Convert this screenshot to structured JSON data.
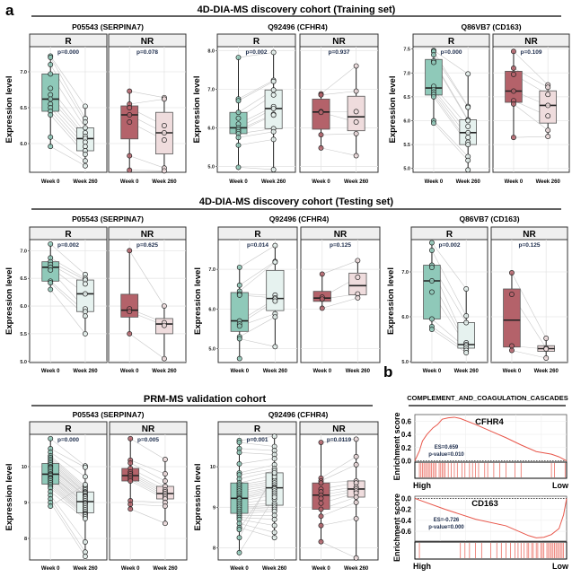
{
  "panel_labels": {
    "a": "a",
    "b": "b"
  },
  "colors": {
    "r_week0": "#8fc9b9",
    "r_week260": "#e6f2ef",
    "nr_week0": "#b4626a",
    "nr_week260": "#efdcdd",
    "gsea_line": "#e8564a",
    "gsea_hit": "#e8564a"
  },
  "sections": [
    {
      "title": "4D-DIA-MS discovery cohort (Training set)"
    },
    {
      "title": "4D-DIA-MS discovery cohort (Testing set)"
    },
    {
      "title": "PRM-MS validation cohort"
    }
  ],
  "ylabel": "Expression level",
  "xticks": [
    "Week 0",
    "Week 260"
  ],
  "chart_data": [
    {
      "type": "box",
      "section": 0,
      "title": "P05543 (SERPINA7)",
      "ylim": [
        5.6,
        7.35
      ],
      "yticks": [
        "6.0",
        "6.5",
        "7.0"
      ],
      "facets": [
        {
          "label": "R",
          "p": "p=0.000",
          "week0": [
            7.22,
            7.2,
            7.1,
            6.97,
            6.77,
            6.68,
            6.62,
            6.55,
            6.5,
            6.45,
            6.4,
            6.09,
            5.96
          ],
          "week260": [
            6.52,
            6.35,
            6.3,
            6.22,
            6.15,
            6.1,
            6.07,
            6.02,
            5.96,
            5.9,
            5.85,
            5.76,
            5.69
          ]
        },
        {
          "label": "NR",
          "p": "p=0.078",
          "week0": [
            6.73,
            6.55,
            6.5,
            6.4,
            6.3,
            5.83,
            5.63
          ],
          "week260": [
            6.64,
            6.62,
            6.25,
            6.15,
            6.05,
            5.66,
            5.62
          ]
        }
      ]
    },
    {
      "type": "box",
      "section": 0,
      "title": "Q92496 (CFHR4)",
      "ylim": [
        4.85,
        8.1
      ],
      "yticks": [
        "5.0",
        "6.0",
        "7.0",
        "8.0"
      ],
      "facets": [
        {
          "label": "R",
          "p": "p=0.002",
          "week0": [
            7.82,
            6.75,
            6.7,
            6.4,
            6.25,
            6.1,
            6.0,
            5.95,
            5.9,
            5.85,
            5.75,
            5.55,
            4.98
          ],
          "week260": [
            7.95,
            7.23,
            7.2,
            6.98,
            6.85,
            6.55,
            6.5,
            6.35,
            6.33,
            5.98,
            5.9,
            5.7,
            4.92
          ]
        },
        {
          "label": "NR",
          "p": "p=0.937",
          "week0": [
            6.88,
            6.85,
            6.42,
            6.4,
            5.82,
            5.48
          ],
          "week260": [
            7.6,
            6.95,
            6.42,
            6.15,
            5.85,
            5.28
          ]
        }
      ]
    },
    {
      "type": "box",
      "section": 0,
      "title": "Q86VB7 (CD163)",
      "ylim": [
        4.92,
        7.55
      ],
      "yticks": [
        "5.0",
        "5.5",
        "6.0",
        "6.5",
        "7.0",
        "7.5"
      ],
      "facets": [
        {
          "label": "R",
          "p": "p=0.000",
          "week0": [
            7.47,
            7.45,
            7.38,
            7.25,
            7.22,
            6.72,
            6.65,
            6.6,
            6.55,
            6.5,
            6.0,
            5.95
          ],
          "week260": [
            6.98,
            6.3,
            6.28,
            6.02,
            6.0,
            5.88,
            5.75,
            5.65,
            5.55,
            5.5,
            5.25,
            5.17,
            4.97
          ]
        },
        {
          "label": "NR",
          "p": "p=0.109",
          "week0": [
            7.45,
            7.1,
            6.97,
            6.62,
            6.42,
            6.35,
            5.65
          ],
          "week260": [
            6.75,
            6.7,
            6.55,
            6.32,
            6.1,
            5.8,
            5.67
          ]
        }
      ]
    },
    {
      "type": "box",
      "section": 1,
      "title": "P05543 (SERPINA7)",
      "ylim": [
        4.98,
        7.2
      ],
      "yticks": [
        "5.0",
        "5.5",
        "6.0",
        "6.5",
        "7.0"
      ],
      "facets": [
        {
          "label": "R",
          "p": "p=0.002",
          "week0": [
            7.12,
            6.87,
            6.8,
            6.75,
            6.7,
            6.65,
            6.45,
            6.42,
            6.3
          ],
          "week260": [
            6.57,
            6.5,
            6.47,
            6.4,
            6.22,
            5.95,
            5.9,
            5.82,
            5.5
          ]
        },
        {
          "label": "NR",
          "p": "p=0.625",
          "week0": [
            7.0,
            5.95,
            5.9,
            5.5
          ],
          "week260": [
            6.0,
            5.7,
            5.65,
            5.05
          ]
        }
      ]
    },
    {
      "type": "box",
      "section": 1,
      "title": "Q92496 (CFHR4)",
      "ylim": [
        4.65,
        7.75
      ],
      "yticks": [
        "5.0",
        "6.0",
        "7.0"
      ],
      "facets": [
        {
          "label": "R",
          "p": "p=0.014",
          "week0": [
            7.05,
            6.6,
            6.45,
            6.38,
            6.35,
            5.7,
            5.62,
            5.57,
            5.3,
            5.25,
            4.75
          ],
          "week260": [
            7.6,
            7.2,
            7.18,
            6.35,
            6.28,
            6.25,
            6.2,
            5.88,
            5.8,
            5.05
          ]
        },
        {
          "label": "NR",
          "p": "p=0.125",
          "week0": [
            6.88,
            6.3,
            6.25,
            6.02
          ],
          "week260": [
            7.22,
            6.8,
            6.38,
            6.28
          ]
        }
      ]
    },
    {
      "type": "box",
      "section": 1,
      "title": "Q86VB7 (CD163)",
      "ylim": [
        4.98,
        7.72
      ],
      "yticks": [
        "5.0",
        "6.0",
        "7.0"
      ],
      "facets": [
        {
          "label": "R",
          "p": "p=0.002",
          "week0": [
            7.65,
            7.48,
            7.15,
            7.1,
            6.8,
            6.55,
            5.95,
            5.78,
            5.72
          ],
          "week260": [
            6.62,
            6.02,
            5.87,
            5.42,
            5.38,
            5.35,
            5.3,
            5.25,
            5.2
          ]
        },
        {
          "label": "NR",
          "p": "p=0.125",
          "week0": [
            6.98,
            6.5,
            5.35,
            5.25
          ],
          "week260": [
            5.52,
            5.3,
            5.28,
            5.08
          ]
        }
      ]
    },
    {
      "type": "box",
      "section": 2,
      "title": "P05543 (SERPINA7)",
      "ylim": [
        7.4,
        10.9
      ],
      "yticks": [
        "8",
        "9",
        "10"
      ],
      "facets": [
        {
          "label": "R",
          "p": "p=0.000",
          "week0": [
            10.78,
            10.5,
            10.4,
            10.3,
            10.25,
            10.2,
            10.15,
            10.1,
            10.05,
            10.0,
            9.98,
            9.95,
            9.9,
            9.85,
            9.8,
            9.78,
            9.75,
            9.7,
            9.68,
            9.65,
            9.6,
            9.55,
            9.5,
            9.45,
            9.4,
            9.3,
            9.2,
            9.1,
            9.0,
            8.9
          ],
          "week260": [
            10.02,
            9.98,
            9.72,
            9.45,
            9.4,
            9.35,
            9.3,
            9.28,
            9.25,
            9.2,
            9.18,
            9.15,
            9.1,
            9.05,
            9.0,
            8.98,
            8.95,
            8.9,
            8.85,
            8.8,
            8.75,
            8.7,
            8.68,
            8.65,
            8.6,
            8.55,
            7.9,
            7.62,
            7.5,
            9.5
          ]
        },
        {
          "label": "NR",
          "p": "p=0.005",
          "week0": [
            10.78,
            10.18,
            10.1,
            9.95,
            9.85,
            9.8,
            9.75,
            9.7,
            9.65,
            9.6,
            9.05,
            8.95,
            8.82
          ],
          "week260": [
            10.2,
            9.8,
            9.6,
            9.45,
            9.35,
            9.3,
            9.25,
            9.2,
            9.15,
            9.1,
            9.0,
            8.9,
            8.42
          ]
        }
      ]
    },
    {
      "type": "box",
      "section": 2,
      "title": "Q92496 (CFHR4)",
      "ylim": [
        7.7,
        10.8
      ],
      "yticks": [
        "8",
        "9",
        "10"
      ],
      "facets": [
        {
          "label": "R",
          "p": "p=0.001",
          "week0": [
            10.65,
            10.6,
            10.45,
            10.35,
            10.07,
            9.85,
            9.8,
            9.7,
            9.6,
            9.55,
            9.5,
            9.45,
            9.4,
            9.35,
            9.3,
            9.25,
            9.22,
            9.2,
            9.15,
            9.1,
            9.05,
            9.0,
            8.95,
            8.9,
            8.85,
            8.8,
            8.75,
            8.7,
            8.6,
            8.5,
            8.45,
            8.25,
            7.88
          ],
          "week260": [
            10.75,
            10.5,
            10.4,
            10.3,
            10.2,
            10.05,
            9.95,
            9.9,
            9.8,
            9.7,
            9.65,
            9.6,
            9.55,
            9.5,
            9.48,
            9.45,
            9.4,
            9.35,
            9.3,
            9.2,
            9.1,
            9.05,
            9.0,
            8.95,
            8.9,
            8.8,
            8.7,
            8.55,
            8.38,
            8.25,
            9.75,
            9.85,
            9.25
          ]
        },
        {
          "label": "NR",
          "p": "p=0.0119",
          "week0": [
            10.6,
            9.72,
            9.65,
            9.6,
            9.45,
            9.38,
            9.3,
            9.22,
            9.1,
            8.95,
            8.78,
            8.55,
            8.15
          ],
          "week260": [
            10.68,
            10.25,
            10.05,
            9.65,
            9.6,
            9.5,
            9.45,
            9.4,
            9.35,
            9.25,
            9.12,
            8.72,
            7.75
          ]
        }
      ]
    }
  ],
  "gsea": {
    "title": "COMPLEMENT_AND_COAGULATION_CASCADES",
    "ylabel": "Enrichment score",
    "high_label": "High",
    "low_label": "Low",
    "plots": [
      {
        "type": "line",
        "name": "CFHR4",
        "es": "ES=0.659",
        "pvalue": "p-value=0.010",
        "ylim": [
          -0.02,
          0.7
        ],
        "yticks": [
          "0.0",
          "0.2",
          "0.4",
          "0.6"
        ],
        "ytick_values": [
          0,
          0.2,
          0.4,
          0.6
        ],
        "curve": [
          [
            0,
            0
          ],
          [
            0.03,
            0.15
          ],
          [
            0.05,
            0.3
          ],
          [
            0.08,
            0.4
          ],
          [
            0.12,
            0.5
          ],
          [
            0.15,
            0.55
          ],
          [
            0.18,
            0.63
          ],
          [
            0.22,
            0.65
          ],
          [
            0.26,
            0.66
          ],
          [
            0.3,
            0.64
          ],
          [
            0.4,
            0.55
          ],
          [
            0.5,
            0.45
          ],
          [
            0.6,
            0.35
          ],
          [
            0.7,
            0.24
          ],
          [
            0.8,
            0.14
          ],
          [
            0.9,
            0.1
          ],
          [
            0.95,
            0.06
          ],
          [
            1,
            0
          ]
        ],
        "hits": [
          0.03,
          0.04,
          0.05,
          0.06,
          0.07,
          0.08,
          0.09,
          0.1,
          0.11,
          0.12,
          0.13,
          0.14,
          0.16,
          0.17,
          0.18,
          0.19,
          0.2,
          0.22,
          0.24,
          0.26,
          0.28,
          0.31,
          0.33,
          0.36,
          0.38,
          0.4,
          0.42,
          0.46,
          0.48,
          0.52,
          0.56,
          0.6,
          0.66,
          0.7,
          0.9,
          0.92,
          0.99
        ]
      },
      {
        "type": "line",
        "name": "CD163",
        "es": "ES=-0.726",
        "pvalue": "p-value=0.000",
        "ylim": [
          -0.78,
          0.04
        ],
        "yticks": [
          "0.0",
          "-0.2",
          "-0.4",
          "-0.6"
        ],
        "ytick_values": [
          0,
          -0.2,
          -0.4,
          -0.6
        ],
        "curve": [
          [
            0,
            0
          ],
          [
            0.2,
            -0.2
          ],
          [
            0.4,
            -0.38
          ],
          [
            0.6,
            -0.5
          ],
          [
            0.75,
            -0.68
          ],
          [
            0.8,
            -0.72
          ],
          [
            0.85,
            -0.71
          ],
          [
            0.9,
            -0.66
          ],
          [
            0.95,
            -0.55
          ],
          [
            0.98,
            -0.3
          ],
          [
            1,
            0
          ]
        ],
        "hits": [
          0.03,
          0.3,
          0.33,
          0.36,
          0.4,
          0.44,
          0.5,
          0.54,
          0.57,
          0.6,
          0.63,
          0.66,
          0.68,
          0.7,
          0.72,
          0.74,
          0.75,
          0.77,
          0.78,
          0.8,
          0.81,
          0.83,
          0.84,
          0.85,
          0.87,
          0.88,
          0.89,
          0.9,
          0.91,
          0.92,
          0.93,
          0.94,
          0.95,
          0.96,
          0.97,
          0.98
        ]
      }
    ]
  }
}
